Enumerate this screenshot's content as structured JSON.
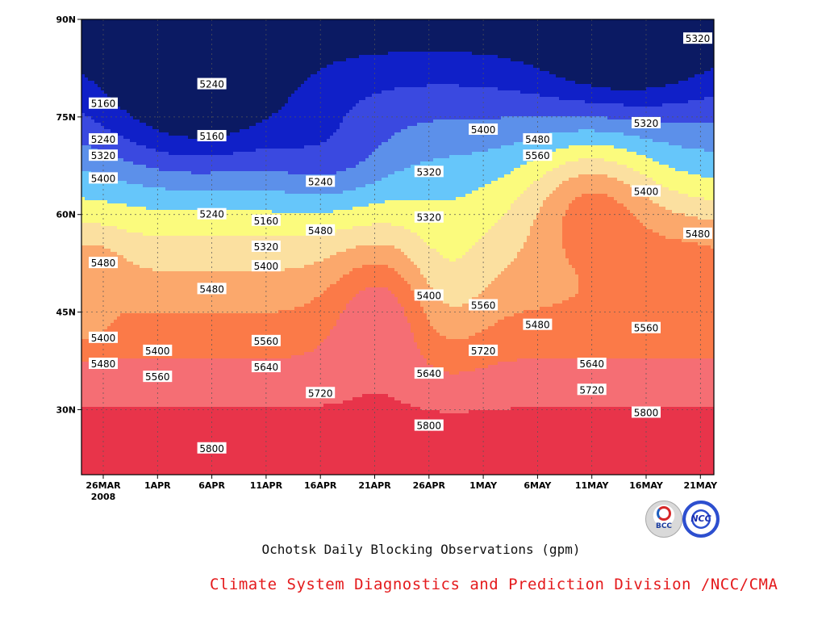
{
  "chart_data": {
    "type": "heatmap",
    "title": "Ochotsk Daily Blocking Observations (gpm)",
    "credit": "Climate System Diagnostics and Prediction Division /NCC/CMA",
    "x_tick_labels": [
      "26MAR",
      "1APR",
      "6APR",
      "11APR",
      "16APR",
      "21APR",
      "26APR",
      "1MAY",
      "6MAY",
      "11MAY",
      "16MAY",
      "21MAY"
    ],
    "x_year_label": "2008",
    "y_tick_labels": [
      "90N",
      "75N",
      "60N",
      "45N",
      "30N"
    ],
    "y_tick_values": [
      90,
      75,
      60,
      45,
      30
    ],
    "ylim": [
      20,
      90
    ],
    "contour_levels": [
      5080,
      5160,
      5240,
      5320,
      5400,
      5480,
      5560,
      5640,
      5720,
      5800,
      5880
    ],
    "colors": [
      "#0b1a63",
      "#1020c8",
      "#3a49e0",
      "#5c90ea",
      "#66c6fa",
      "#fbfb7d",
      "#fbe0a0",
      "#fba86c",
      "#fb7a48",
      "#f56e74",
      "#e8344a"
    ],
    "contour_labels": [
      {
        "x": "26MAR",
        "lat": 77,
        "v": "5160"
      },
      {
        "x": "26MAR",
        "lat": 71.5,
        "v": "5240"
      },
      {
        "x": "26MAR",
        "lat": 69,
        "v": "5320"
      },
      {
        "x": "26MAR",
        "lat": 65.5,
        "v": "5400"
      },
      {
        "x": "26MAR",
        "lat": 52.5,
        "v": "5480"
      },
      {
        "x": "26MAR",
        "lat": 41,
        "v": "5400"
      },
      {
        "x": "26MAR",
        "lat": 37,
        "v": "5480"
      },
      {
        "x": "1APR",
        "lat": 39,
        "v": "5400"
      },
      {
        "x": "1APR",
        "lat": 35,
        "v": "5560"
      },
      {
        "x": "6APR",
        "lat": 80,
        "v": "5240"
      },
      {
        "x": "6APR",
        "lat": 72,
        "v": "5160"
      },
      {
        "x": "6APR",
        "lat": 60,
        "v": "5240"
      },
      {
        "x": "6APR",
        "lat": 48.5,
        "v": "5480"
      },
      {
        "x": "6APR",
        "lat": 24,
        "v": "5800"
      },
      {
        "x": "11APR",
        "lat": 55,
        "v": "5320"
      },
      {
        "x": "11APR",
        "lat": 59,
        "v": "5160"
      },
      {
        "x": "11APR",
        "lat": 52,
        "v": "5400"
      },
      {
        "x": "11APR",
        "lat": 40.5,
        "v": "5560"
      },
      {
        "x": "11APR",
        "lat": 36.5,
        "v": "5640"
      },
      {
        "x": "16APR",
        "lat": 65,
        "v": "5240"
      },
      {
        "x": "16APR",
        "lat": 57.5,
        "v": "5480"
      },
      {
        "x": "16APR",
        "lat": 32.5,
        "v": "5720"
      },
      {
        "x": "26APR",
        "lat": 66.5,
        "v": "5320"
      },
      {
        "x": "26APR",
        "lat": 59.5,
        "v": "5320"
      },
      {
        "x": "26APR",
        "lat": 47.5,
        "v": "5400"
      },
      {
        "x": "26APR",
        "lat": 35.5,
        "v": "5640"
      },
      {
        "x": "26APR",
        "lat": 27.5,
        "v": "5800"
      },
      {
        "x": "1MAY",
        "lat": 73,
        "v": "5400"
      },
      {
        "x": "1MAY",
        "lat": 46,
        "v": "5560"
      },
      {
        "x": "1MAY",
        "lat": 39,
        "v": "5720"
      },
      {
        "x": "6MAY",
        "lat": 71.5,
        "v": "5480"
      },
      {
        "x": "6MAY",
        "lat": 69,
        "v": "5560"
      },
      {
        "x": "6MAY",
        "lat": 43,
        "v": "5480"
      },
      {
        "x": "11MAY",
        "lat": 37,
        "v": "5640"
      },
      {
        "x": "11MAY",
        "lat": 33,
        "v": "5720"
      },
      {
        "x": "16MAY",
        "lat": 74,
        "v": "5320"
      },
      {
        "x": "16MAY",
        "lat": 63.5,
        "v": "5400"
      },
      {
        "x": "16MAY",
        "lat": 42.5,
        "v": "5560"
      },
      {
        "x": "16MAY",
        "lat": 29.5,
        "v": "5800"
      },
      {
        "x": "21MAY",
        "lat": 87,
        "v": "5320"
      },
      {
        "x": "21MAY",
        "lat": 57,
        "v": "5480"
      }
    ],
    "grid": true
  }
}
